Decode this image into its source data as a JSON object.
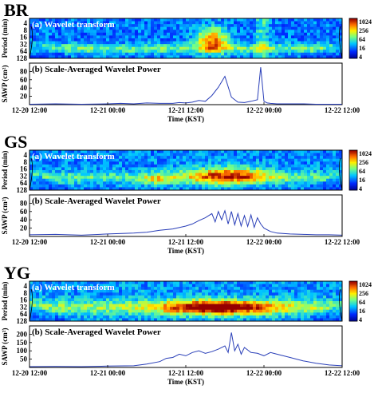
{
  "chart_data": [
    {
      "type": "heatmap",
      "station": "BR",
      "panel_a_title": "(a) Wavelet transform",
      "panel_b_title": "(b) Scale-Averaged Wavelet Power",
      "wavelet_ylabel": "Period (min)",
      "wavelet_yticks": [
        "4",
        "8",
        "16",
        "32",
        "64",
        "128"
      ],
      "colorbar_ticks": [
        "1024",
        "256",
        "64",
        "16",
        "4"
      ],
      "sawp_ylabel": "SAWP (cm²)",
      "sawp_yticks": [
        20,
        40,
        60,
        80
      ],
      "sawp_ylim": [
        0,
        100
      ],
      "x_ticks": [
        "12-20 12:00",
        "12-21 00:00",
        "12-21 12:00",
        "12-22 00:00",
        "12-22 12:00"
      ],
      "xlabel": "Time (KST)",
      "sawp_series": {
        "x": [
          0,
          4,
          8,
          12,
          14,
          16,
          18,
          20,
          22,
          23,
          24,
          25,
          26,
          27,
          28,
          29,
          30,
          31,
          32,
          33,
          34,
          35,
          35.5,
          36,
          36.5,
          37,
          38,
          40,
          42,
          44,
          46,
          48
        ],
        "y": [
          1,
          2,
          1,
          2,
          3,
          2,
          4,
          3,
          3,
          5,
          4,
          6,
          10,
          8,
          22,
          42,
          68,
          18,
          6,
          5,
          8,
          12,
          90,
          8,
          4,
          3,
          2,
          2,
          2,
          1,
          1,
          1
        ]
      }
    },
    {
      "type": "heatmap",
      "station": "GS",
      "panel_a_title": "(a) Wavelet transform",
      "panel_b_title": "(b) Scale-Averaged Wavelet Power",
      "wavelet_ylabel": "Period (min)",
      "wavelet_yticks": [
        "4",
        "8",
        "16",
        "32",
        "64",
        "128"
      ],
      "colorbar_ticks": [
        "1024",
        "256",
        "64",
        "16",
        "4"
      ],
      "sawp_ylabel": "SAWP (cm²)",
      "sawp_yticks": [
        20,
        40,
        60,
        80
      ],
      "sawp_ylim": [
        0,
        100
      ],
      "x_ticks": [
        "12-20 12:00",
        "12-21 00:00",
        "12-21 12:00",
        "12-22 00:00",
        "12-22 12:00"
      ],
      "xlabel": "Time (KST)",
      "sawp_series": {
        "x": [
          0,
          4,
          8,
          12,
          16,
          18,
          20,
          22,
          24,
          25,
          26,
          27,
          28,
          28.5,
          29,
          29.5,
          30,
          30.5,
          31,
          31.5,
          32,
          32.5,
          33,
          33.5,
          34,
          34.5,
          35,
          35.5,
          36,
          37,
          38,
          40,
          42,
          44,
          46,
          48
        ],
        "y": [
          4,
          5,
          3,
          6,
          8,
          10,
          15,
          18,
          25,
          30,
          38,
          45,
          55,
          35,
          60,
          40,
          62,
          30,
          60,
          28,
          55,
          25,
          50,
          24,
          52,
          22,
          45,
          30,
          20,
          12,
          8,
          6,
          5,
          4,
          4,
          3
        ]
      }
    },
    {
      "type": "heatmap",
      "station": "YG",
      "panel_a_title": "(a) Wavelet transform",
      "panel_b_title": "(b) Scale-Averaged Wavelet Power",
      "wavelet_ylabel": "Period (min)",
      "wavelet_yticks": [
        "4",
        "8",
        "16",
        "32",
        "64",
        "128"
      ],
      "colorbar_ticks": [
        "1024",
        "256",
        "64",
        "16",
        "4"
      ],
      "sawp_ylabel": "SAWP (cm²)",
      "sawp_yticks": [
        50,
        100,
        150,
        200
      ],
      "sawp_ylim": [
        0,
        250
      ],
      "x_ticks": [
        "12-20 12:00",
        "12-21 00:00",
        "12-21 12:00",
        "12-22 00:00",
        "12-22 12:00"
      ],
      "xlabel": "Time (KST)",
      "sawp_series": {
        "x": [
          0,
          4,
          8,
          12,
          16,
          18,
          20,
          21,
          22,
          23,
          24,
          25,
          26,
          27,
          28,
          29,
          30,
          30.5,
          31,
          31.5,
          32,
          32.5,
          33,
          34,
          35,
          36,
          37,
          38,
          40,
          42,
          44,
          46,
          48
        ],
        "y": [
          5,
          6,
          5,
          8,
          10,
          20,
          35,
          55,
          60,
          80,
          70,
          90,
          100,
          85,
          95,
          110,
          130,
          90,
          210,
          100,
          140,
          80,
          120,
          90,
          85,
          70,
          90,
          80,
          60,
          40,
          25,
          15,
          10
        ]
      }
    }
  ]
}
